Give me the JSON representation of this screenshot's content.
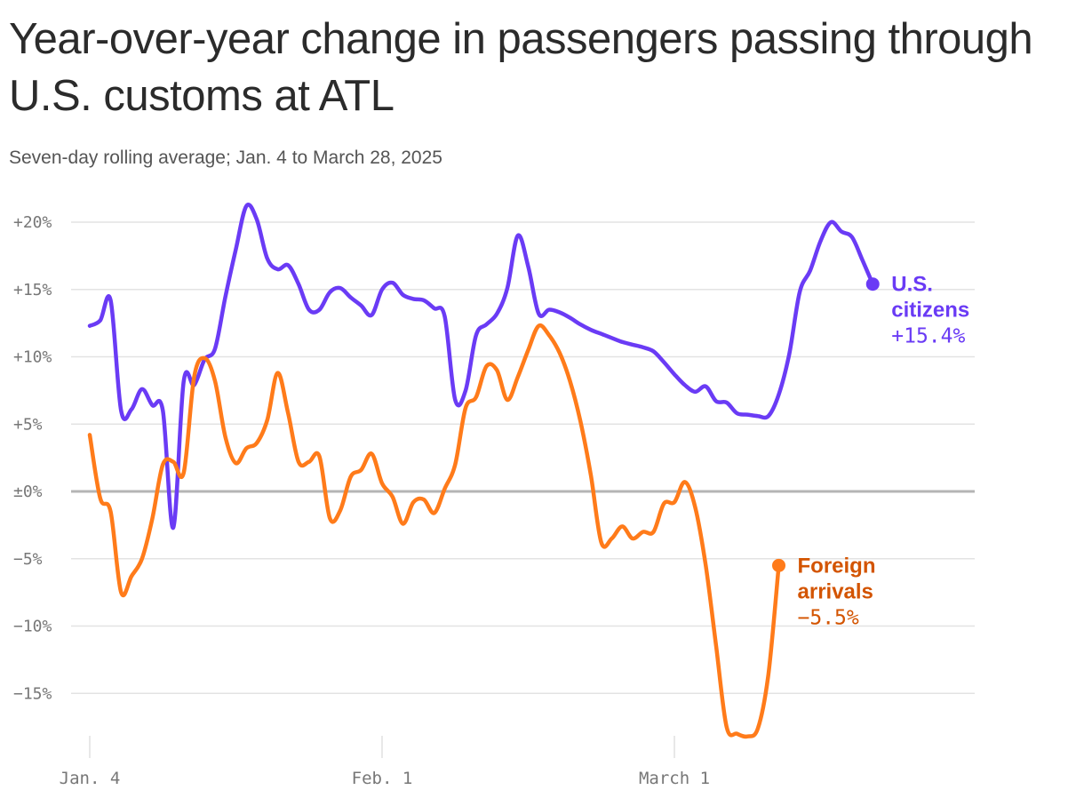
{
  "chart_data": {
    "type": "line",
    "title": "Year-over-year change in passengers passing through U.S. customs at ATL",
    "subtitle": "Seven-day rolling average; Jan. 4 to March 28, 2025",
    "x_range": [
      "2025-01-04",
      "2025-03-28"
    ],
    "ylim": [
      -18,
      20
    ],
    "grid": true,
    "y_ticks": [
      {
        "value": 20,
        "label": "+20%"
      },
      {
        "value": 15,
        "label": "+15%"
      },
      {
        "value": 10,
        "label": "+10%"
      },
      {
        "value": 5,
        "label": "+5%"
      },
      {
        "value": 0,
        "label": "±0%"
      },
      {
        "value": -5,
        "label": "−5%"
      },
      {
        "value": -10,
        "label": "−10%"
      },
      {
        "value": -15,
        "label": "−15%"
      }
    ],
    "x_ticks": [
      {
        "date": "2025-01-04",
        "label": "Jan. 4"
      },
      {
        "date": "2025-02-01",
        "label": "Feb. 1"
      },
      {
        "date": "2025-03-01",
        "label": "March 1"
      }
    ],
    "series": [
      {
        "name": "U.S. citizens",
        "color": "#6a3bf5",
        "end_label": [
          "U.S.",
          "citizens"
        ],
        "end_value_label": "+15.4%",
        "points": [
          [
            "2025-01-04",
            12.3
          ],
          [
            "2025-01-05",
            12.7
          ],
          [
            "2025-01-06",
            14.2
          ],
          [
            "2025-01-07",
            6.0
          ],
          [
            "2025-01-08",
            6.1
          ],
          [
            "2025-01-09",
            7.6
          ],
          [
            "2025-01-10",
            6.4
          ],
          [
            "2025-01-11",
            6.0
          ],
          [
            "2025-01-12",
            -2.7
          ],
          [
            "2025-01-13",
            8.2
          ],
          [
            "2025-01-14",
            7.9
          ],
          [
            "2025-01-15",
            9.8
          ],
          [
            "2025-01-16",
            10.6
          ],
          [
            "2025-01-17",
            14.5
          ],
          [
            "2025-01-18",
            18.0
          ],
          [
            "2025-01-19",
            21.2
          ],
          [
            "2025-01-20",
            20.2
          ],
          [
            "2025-01-21",
            17.3
          ],
          [
            "2025-01-22",
            16.5
          ],
          [
            "2025-01-23",
            16.8
          ],
          [
            "2025-01-24",
            15.4
          ],
          [
            "2025-01-25",
            13.5
          ],
          [
            "2025-01-26",
            13.5
          ],
          [
            "2025-01-27",
            14.8
          ],
          [
            "2025-01-28",
            15.1
          ],
          [
            "2025-01-29",
            14.4
          ],
          [
            "2025-01-30",
            13.8
          ],
          [
            "2025-01-31",
            13.1
          ],
          [
            "2025-02-01",
            15.0
          ],
          [
            "2025-02-02",
            15.5
          ],
          [
            "2025-02-03",
            14.6
          ],
          [
            "2025-02-04",
            14.3
          ],
          [
            "2025-02-05",
            14.2
          ],
          [
            "2025-02-06",
            13.6
          ],
          [
            "2025-02-07",
            13.0
          ],
          [
            "2025-02-08",
            6.8
          ],
          [
            "2025-02-09",
            7.5
          ],
          [
            "2025-02-10",
            11.6
          ],
          [
            "2025-02-11",
            12.4
          ],
          [
            "2025-02-12",
            13.2
          ],
          [
            "2025-02-13",
            15.1
          ],
          [
            "2025-02-14",
            19.0
          ],
          [
            "2025-02-15",
            16.7
          ],
          [
            "2025-02-16",
            13.2
          ],
          [
            "2025-02-17",
            13.5
          ],
          [
            "2025-02-18",
            13.3
          ],
          [
            "2025-02-19",
            12.9
          ],
          [
            "2025-02-20",
            12.4
          ],
          [
            "2025-02-21",
            12.0
          ],
          [
            "2025-02-22",
            11.7
          ],
          [
            "2025-02-23",
            11.4
          ],
          [
            "2025-02-24",
            11.1
          ],
          [
            "2025-02-25",
            10.9
          ],
          [
            "2025-02-26",
            10.7
          ],
          [
            "2025-02-27",
            10.4
          ],
          [
            "2025-02-28",
            9.6
          ],
          [
            "2025-03-01",
            8.7
          ],
          [
            "2025-03-02",
            7.9
          ],
          [
            "2025-03-03",
            7.4
          ],
          [
            "2025-03-04",
            7.8
          ],
          [
            "2025-03-05",
            6.7
          ],
          [
            "2025-03-06",
            6.6
          ],
          [
            "2025-03-07",
            5.8
          ],
          [
            "2025-03-08",
            5.7
          ],
          [
            "2025-03-09",
            5.6
          ],
          [
            "2025-03-10",
            5.6
          ],
          [
            "2025-03-11",
            7.2
          ],
          [
            "2025-03-12",
            10.2
          ],
          [
            "2025-03-13",
            14.8
          ],
          [
            "2025-03-14",
            16.4
          ],
          [
            "2025-03-15",
            18.6
          ],
          [
            "2025-03-16",
            20.0
          ],
          [
            "2025-03-17",
            19.3
          ],
          [
            "2025-03-18",
            18.9
          ],
          [
            "2025-03-19",
            17.2
          ],
          [
            "2025-03-20",
            15.4
          ]
        ]
      },
      {
        "name": "Foreign arrivals",
        "color": "#ff7b1a",
        "label_color": "#d35400",
        "end_label": [
          "Foreign",
          "arrivals"
        ],
        "end_value_label": "−5.5%",
        "points": [
          [
            "2025-01-04",
            4.2
          ],
          [
            "2025-01-05",
            -0.5
          ],
          [
            "2025-01-06",
            -1.5
          ],
          [
            "2025-01-07",
            -7.5
          ],
          [
            "2025-01-08",
            -6.3
          ],
          [
            "2025-01-09",
            -5.0
          ],
          [
            "2025-01-10",
            -2.0
          ],
          [
            "2025-01-11",
            2.0
          ],
          [
            "2025-01-12",
            2.2
          ],
          [
            "2025-01-13",
            1.4
          ],
          [
            "2025-01-14",
            8.5
          ],
          [
            "2025-01-15",
            9.9
          ],
          [
            "2025-01-16",
            8.2
          ],
          [
            "2025-01-17",
            4.0
          ],
          [
            "2025-01-18",
            2.1
          ],
          [
            "2025-01-19",
            3.2
          ],
          [
            "2025-01-20",
            3.6
          ],
          [
            "2025-01-21",
            5.3
          ],
          [
            "2025-01-22",
            8.8
          ],
          [
            "2025-01-23",
            5.8
          ],
          [
            "2025-01-24",
            2.2
          ],
          [
            "2025-01-25",
            2.2
          ],
          [
            "2025-01-26",
            2.6
          ],
          [
            "2025-01-27",
            -2.0
          ],
          [
            "2025-01-28",
            -1.4
          ],
          [
            "2025-01-29",
            1.1
          ],
          [
            "2025-01-30",
            1.6
          ],
          [
            "2025-01-31",
            2.8
          ],
          [
            "2025-02-01",
            0.6
          ],
          [
            "2025-02-02",
            -0.4
          ],
          [
            "2025-02-03",
            -2.4
          ],
          [
            "2025-02-04",
            -0.8
          ],
          [
            "2025-02-05",
            -0.6
          ],
          [
            "2025-02-06",
            -1.6
          ],
          [
            "2025-02-07",
            0.2
          ],
          [
            "2025-02-08",
            2.0
          ],
          [
            "2025-02-09",
            6.2
          ],
          [
            "2025-02-10",
            7.0
          ],
          [
            "2025-02-11",
            9.3
          ],
          [
            "2025-02-12",
            9.0
          ],
          [
            "2025-02-13",
            6.8
          ],
          [
            "2025-02-14",
            8.5
          ],
          [
            "2025-02-15",
            10.5
          ],
          [
            "2025-02-16",
            12.3
          ],
          [
            "2025-02-17",
            11.6
          ],
          [
            "2025-02-18",
            10.3
          ],
          [
            "2025-02-19",
            8.2
          ],
          [
            "2025-02-20",
            5.2
          ],
          [
            "2025-02-21",
            1.2
          ],
          [
            "2025-02-22",
            -3.8
          ],
          [
            "2025-02-23",
            -3.5
          ],
          [
            "2025-02-24",
            -2.6
          ],
          [
            "2025-02-25",
            -3.5
          ],
          [
            "2025-02-26",
            -3.0
          ],
          [
            "2025-02-27",
            -3.0
          ],
          [
            "2025-02-28",
            -0.9
          ],
          [
            "2025-03-01",
            -0.8
          ],
          [
            "2025-03-02",
            0.7
          ],
          [
            "2025-03-03",
            -1.2
          ],
          [
            "2025-03-04",
            -5.5
          ],
          [
            "2025-03-05",
            -11.5
          ],
          [
            "2025-03-06",
            -17.5
          ],
          [
            "2025-03-07",
            -18.0
          ],
          [
            "2025-03-08",
            -18.2
          ],
          [
            "2025-03-09",
            -17.6
          ],
          [
            "2025-03-10",
            -13.6
          ],
          [
            "2025-03-11",
            -5.5
          ]
        ]
      }
    ]
  }
}
